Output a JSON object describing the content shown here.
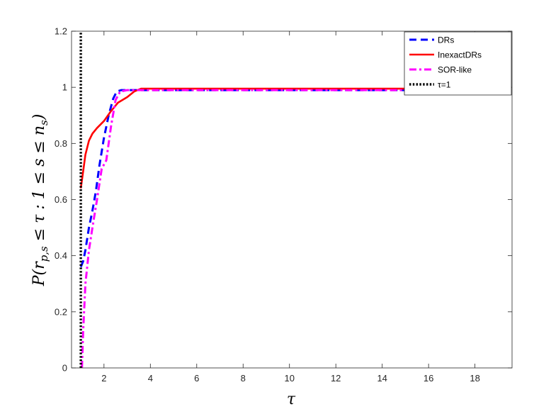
{
  "chart_data": {
    "type": "line",
    "title": "",
    "xlabel": "τ",
    "ylabel": "P(r_{p,s} ≤ τ : 1 ≤ s ≤ n_s)",
    "ylabel_parts": {
      "p": "P(",
      "r": "r",
      "r_sub": "p,s",
      "mid": " ≤ τ : 1 ≤ s ≤ ",
      "n": "n",
      "n_sub": "s",
      "close": ")"
    },
    "xlim": [
      0.6,
      19.6
    ],
    "ylim": [
      0,
      1.2
    ],
    "xticks": [
      2,
      4,
      6,
      8,
      10,
      12,
      14,
      16,
      18
    ],
    "yticks": [
      0,
      0.2,
      0.4,
      0.6,
      0.8,
      1,
      1.2
    ],
    "xtick_labels": [
      "2",
      "4",
      "6",
      "8",
      "10",
      "12",
      "14",
      "16",
      "18"
    ],
    "ytick_labels": [
      "0",
      "0.2",
      "0.4",
      "0.6",
      "0.8",
      "1",
      "1.2"
    ],
    "grid": false,
    "legend_position": "top-right",
    "series": [
      {
        "name": "DRs",
        "color": "#0000ff",
        "dash": "dashed",
        "x": [
          1.0,
          1.1,
          1.2,
          1.35,
          1.5,
          1.65,
          1.8,
          2.0,
          2.2,
          2.4,
          2.55,
          2.75,
          3.0,
          19.4
        ],
        "y": [
          0.36,
          0.38,
          0.42,
          0.5,
          0.56,
          0.63,
          0.72,
          0.82,
          0.9,
          0.96,
          0.985,
          0.99,
          0.99,
          0.99
        ]
      },
      {
        "name": "InexactDRs",
        "color": "#ff0000",
        "dash": "solid",
        "x": [
          1.0,
          1.1,
          1.2,
          1.35,
          1.5,
          1.7,
          2.0,
          2.3,
          2.6,
          3.0,
          3.3,
          3.6,
          19.4
        ],
        "y": [
          0.64,
          0.7,
          0.76,
          0.81,
          0.835,
          0.855,
          0.88,
          0.915,
          0.945,
          0.965,
          0.985,
          0.995,
          0.995
        ]
      },
      {
        "name": "SOR-like",
        "color": "#ff00ff",
        "dash": "dashdot",
        "x": [
          1.05,
          1.1,
          1.2,
          1.35,
          1.5,
          1.7,
          1.9,
          2.1,
          2.3,
          2.5,
          2.7,
          3.0,
          19.4
        ],
        "y": [
          0.0,
          0.13,
          0.3,
          0.42,
          0.5,
          0.6,
          0.71,
          0.74,
          0.86,
          0.955,
          0.985,
          0.99,
          0.99
        ]
      },
      {
        "name": "τ=1",
        "color": "#000000",
        "dash": "dotted",
        "x": [
          1.0,
          1.0
        ],
        "y": [
          0,
          1.2
        ]
      }
    ]
  }
}
